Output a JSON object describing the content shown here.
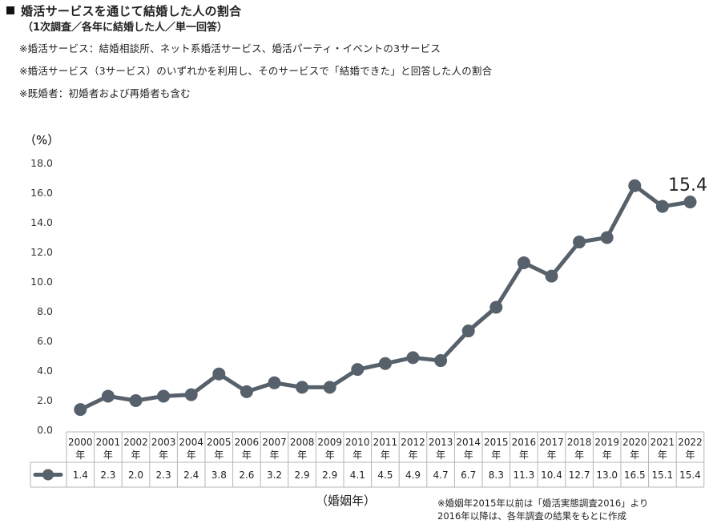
{
  "header": {
    "title": "婚活サービスを通じて結婚した人の割合",
    "subtitle": "（1次調査／各年に結婚した人／単一回答）",
    "notes": [
      "※婚活サービス：結婚相談所、ネット系婚活サービス、婚活パーティ・イベントの3サービス",
      "※婚活サービス（3サービス）のいずれかを利用し、そのサービスで「結婚できた」と回答した人の割合",
      "※既婚者：初婚者および再婚者も含む"
    ]
  },
  "footnote": {
    "line1": "※婚姻年2015年以前は「婚活実態調査2016」より",
    "line2": "2016年以降は、各年調査の結果をもとに作成"
  },
  "chart_data": {
    "type": "line",
    "unit_label": "（%）",
    "xlabel": "（婚姻年）",
    "ylim": [
      0,
      18
    ],
    "y_ticks": [
      "0.0",
      "2.0",
      "4.0",
      "6.0",
      "8.0",
      "10.0",
      "12.0",
      "14.0",
      "16.0",
      "18.0"
    ],
    "year_suffix": "年",
    "categories": [
      "2000",
      "2001",
      "2002",
      "2003",
      "2004",
      "2005",
      "2006",
      "2007",
      "2008",
      "2009",
      "2010",
      "2011",
      "2012",
      "2013",
      "2014",
      "2015",
      "2016",
      "2017",
      "2018",
      "2019",
      "2020",
      "2021",
      "2022"
    ],
    "series": [
      {
        "values": [
          1.4,
          2.3,
          2.0,
          2.3,
          2.4,
          3.8,
          2.6,
          3.2,
          2.9,
          2.9,
          4.1,
          4.5,
          4.9,
          4.7,
          6.7,
          8.3,
          11.3,
          10.4,
          12.7,
          13.0,
          16.5,
          15.1,
          15.4
        ],
        "table_values": [
          "1.4",
          "2.3",
          "2.0",
          "2.3",
          "2.4",
          "3.8",
          "2.6",
          "3.2",
          "2.9",
          "2.9",
          "4.1",
          "4.5",
          "4.9",
          "4.7",
          "6.7",
          "8.3",
          "11.3",
          "10.4",
          "12.7",
          "13.0",
          "16.5",
          "15.1",
          "15.4"
        ]
      }
    ],
    "highlight_label": "15.4",
    "grid": false,
    "line_color": "#56616b"
  }
}
